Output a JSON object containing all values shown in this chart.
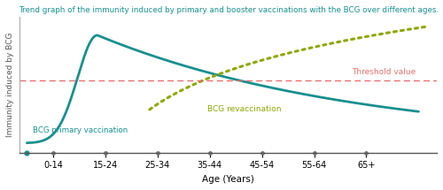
{
  "title": "Trend graph of the immunity induced by primary and booster vaccinations with the BCG over different ages.",
  "xlabel": "Age (Years)",
  "ylabel": "Immunity induced by BCG",
  "xtick_labels": [
    "0-14",
    "15-24",
    "25-34",
    "35-44",
    "45-54",
    "55-64",
    "65+"
  ],
  "background_color": "#ffffff",
  "primary_color": "#1a8f8f",
  "revax_color": "#8ca800",
  "threshold_color": "#e87070",
  "threshold_value": 0.52,
  "title_color": "#1a8f8f",
  "threshold_label": "Threshold value",
  "primary_label": "BCG primary vaccination",
  "revax_label": "BCG revaccination"
}
